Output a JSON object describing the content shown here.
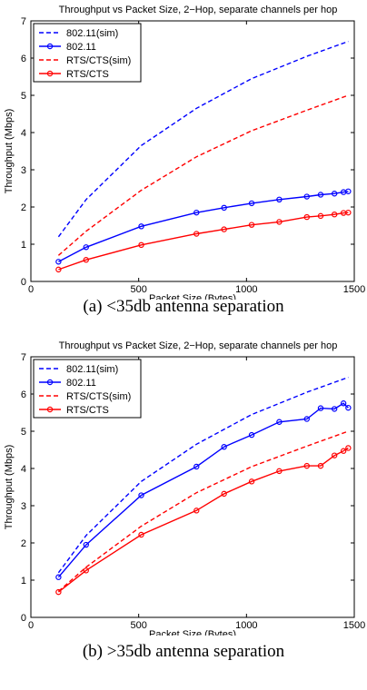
{
  "chart_data": [
    {
      "type": "line",
      "title": "Throughput vs Packet Size, 2−Hop, separate channels per hop",
      "xlabel": "Packet Size (Bytes)",
      "ylabel": "Throughput (Mbps)",
      "xlim": [
        0,
        1500
      ],
      "ylim": [
        0,
        7
      ],
      "xticks": [
        "0",
        "500",
        "1000",
        "1500"
      ],
      "yticks": [
        "0",
        "1",
        "2",
        "3",
        "4",
        "5",
        "6",
        "7"
      ],
      "legend_position": "top-left",
      "caption": "(a) <35db antenna separation",
      "series": [
        {
          "name": "802.11(sim)",
          "color": "#0000ff",
          "style": "dashed",
          "x": [
            128,
            256,
            512,
            768,
            1024,
            1280,
            1472
          ],
          "y": [
            1.2,
            2.2,
            3.65,
            4.65,
            5.45,
            6.05,
            6.45
          ]
        },
        {
          "name": "802.11",
          "color": "#0000ff",
          "style": "solid-marker",
          "x": [
            128,
            256,
            512,
            768,
            896,
            1024,
            1152,
            1280,
            1344,
            1408,
            1450,
            1472
          ],
          "y": [
            0.53,
            0.92,
            1.48,
            1.85,
            1.98,
            2.1,
            2.2,
            2.28,
            2.33,
            2.36,
            2.4,
            2.42
          ]
        },
        {
          "name": "RTS/CTS(sim)",
          "color": "#ff0000",
          "style": "dashed",
          "x": [
            128,
            256,
            512,
            768,
            1024,
            1280,
            1472
          ],
          "y": [
            0.7,
            1.35,
            2.45,
            3.35,
            4.05,
            4.6,
            5.0
          ]
        },
        {
          "name": "RTS/CTS",
          "color": "#ff0000",
          "style": "solid-marker",
          "x": [
            128,
            256,
            512,
            768,
            896,
            1024,
            1152,
            1280,
            1344,
            1408,
            1450,
            1472
          ],
          "y": [
            0.32,
            0.58,
            0.98,
            1.28,
            1.4,
            1.52,
            1.6,
            1.73,
            1.76,
            1.8,
            1.84,
            1.85
          ]
        }
      ]
    },
    {
      "type": "line",
      "title": "Throughput vs Packet Size, 2−Hop, separate channels per hop",
      "xlabel": "Packet Size (Bytes)",
      "ylabel": "Throughput (Mbps)",
      "xlim": [
        0,
        1500
      ],
      "ylim": [
        0,
        7
      ],
      "xticks": [
        "0",
        "500",
        "1000",
        "1500"
      ],
      "yticks": [
        "0",
        "1",
        "2",
        "3",
        "4",
        "5",
        "6",
        "7"
      ],
      "legend_position": "top-left",
      "caption": "(b) >35db antenna separation",
      "series": [
        {
          "name": "802.11(sim)",
          "color": "#0000ff",
          "style": "dashed",
          "x": [
            128,
            256,
            512,
            768,
            1024,
            1280,
            1472
          ],
          "y": [
            1.2,
            2.2,
            3.65,
            4.65,
            5.45,
            6.05,
            6.45
          ]
        },
        {
          "name": "802.11",
          "color": "#0000ff",
          "style": "solid-marker",
          "x": [
            128,
            256,
            512,
            768,
            896,
            1024,
            1152,
            1280,
            1344,
            1408,
            1450,
            1472
          ],
          "y": [
            1.08,
            1.95,
            3.28,
            4.05,
            4.58,
            4.9,
            5.25,
            5.33,
            5.62,
            5.6,
            5.75,
            5.63
          ]
        },
        {
          "name": "RTS/CTS(sim)",
          "color": "#ff0000",
          "style": "dashed",
          "x": [
            128,
            256,
            512,
            768,
            1024,
            1280,
            1472
          ],
          "y": [
            0.7,
            1.35,
            2.45,
            3.35,
            4.05,
            4.6,
            5.0
          ]
        },
        {
          "name": "RTS/CTS",
          "color": "#ff0000",
          "style": "solid-marker",
          "x": [
            128,
            256,
            512,
            768,
            896,
            1024,
            1152,
            1280,
            1344,
            1408,
            1450,
            1472
          ],
          "y": [
            0.68,
            1.26,
            2.22,
            2.87,
            3.32,
            3.65,
            3.93,
            4.07,
            4.07,
            4.35,
            4.47,
            4.55
          ]
        }
      ]
    }
  ]
}
